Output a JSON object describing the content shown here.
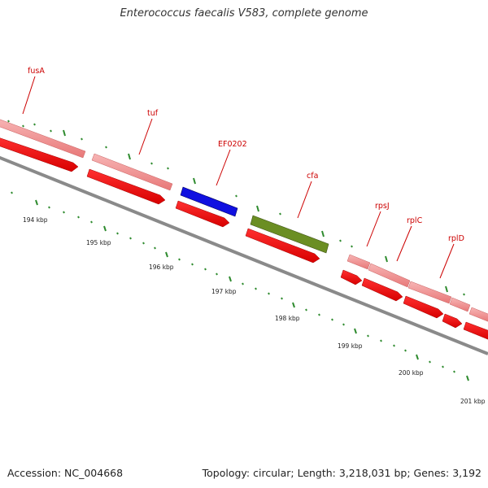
{
  "title": "Enterococcus faecalis V583, complete genome",
  "footer": {
    "accession": "Accession: NC_004668",
    "summary": "Topology: circular; Length: 3,218,031 bp; Genes: 3,192"
  },
  "colors": {
    "backbone": "#808080",
    "cds_red": "#ff0000",
    "gene_pink": "#f08c8c",
    "blue_feature": "#1010e0",
    "green_feature": "#6b8e23",
    "label_red": "#cc0000",
    "tick_green": "#2e8b2e"
  },
  "scale_labels": [
    "194 kbp",
    "195 kbp",
    "196 kbp",
    "197 kbp",
    "198 kbp",
    "199 kbp",
    "200 kbp",
    "201 kbp"
  ],
  "gene_labels": [
    "fusA",
    "tuf",
    "EF0202",
    "cfa",
    "rpsJ",
    "rplC",
    "rplD"
  ]
}
